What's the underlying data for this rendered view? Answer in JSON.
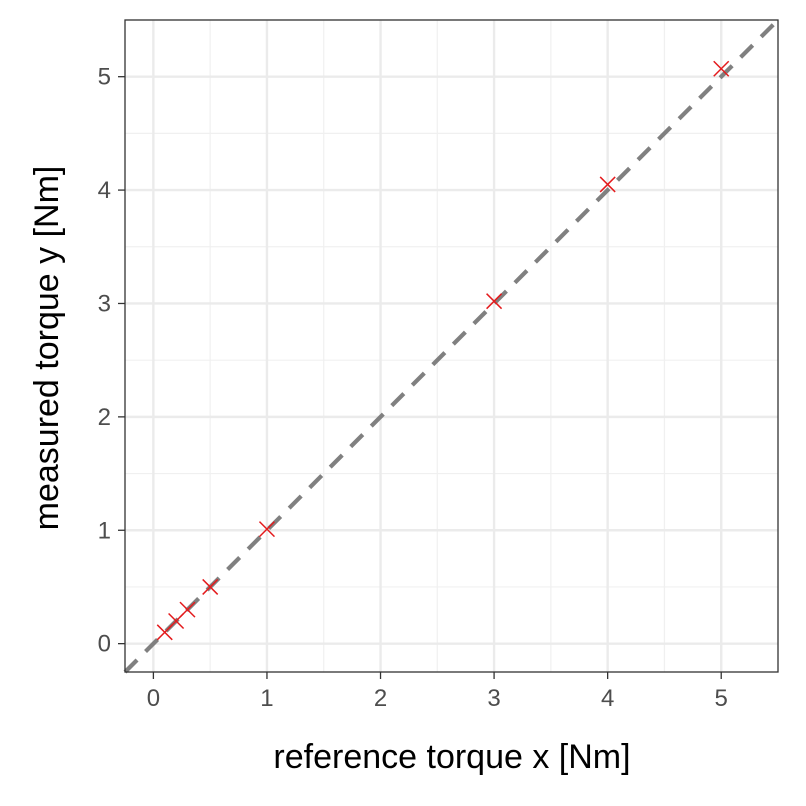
{
  "chart_data": {
    "type": "scatter",
    "title": "",
    "xlabel": "reference torque x [Nm]",
    "ylabel": "measured torque y [Nm]",
    "xlim": [
      -0.25,
      5.5
    ],
    "ylim": [
      -0.25,
      5.5
    ],
    "x_ticks": [
      0,
      1,
      2,
      3,
      4,
      5
    ],
    "y_ticks": [
      0,
      1,
      2,
      3,
      4,
      5
    ],
    "x_tick_labels": [
      "0",
      "1",
      "2",
      "3",
      "4",
      "5"
    ],
    "y_tick_labels": [
      "0",
      "1",
      "2",
      "3",
      "4",
      "5"
    ],
    "grid": true,
    "minor_grid": true,
    "series": [
      {
        "marker": "x",
        "color": "#e41a1c",
        "x": [
          0.1,
          0.2,
          0.3,
          0.5,
          1.0,
          3.0,
          4.0,
          5.0
        ],
        "y": [
          0.1,
          0.2,
          0.3,
          0.5,
          1.01,
          3.02,
          4.05,
          5.07
        ]
      }
    ],
    "reference_line": {
      "kind": "identity y = x",
      "style": "dashed",
      "color": "#808080"
    }
  }
}
